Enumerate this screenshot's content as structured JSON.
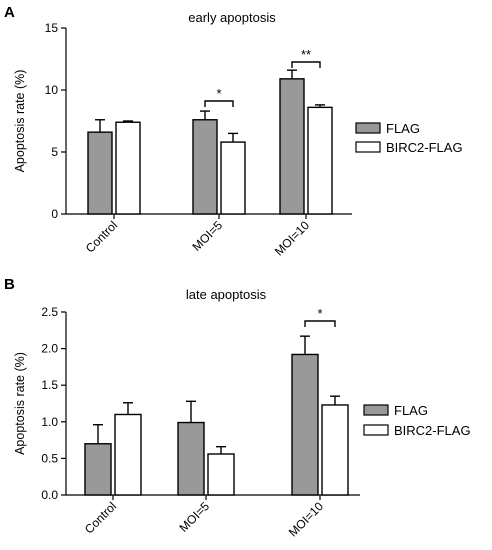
{
  "chart_data": [
    {
      "panel": "A",
      "type": "bar",
      "title": "early apoptosis",
      "xlabel": "",
      "ylabel": "Apoptosis rate (%)",
      "ylim": [
        0,
        15
      ],
      "yticks": [
        "0",
        "5",
        "10",
        "15"
      ],
      "categories": [
        "Control",
        "MOI=5",
        "MOI=10"
      ],
      "series": [
        {
          "name": "FLAG",
          "color": "#999999",
          "values": [
            6.6,
            7.6,
            10.9
          ],
          "errors": [
            1.0,
            0.7,
            0.7
          ]
        },
        {
          "name": "BIRC2-FLAG",
          "color": "#ffffff",
          "values": [
            7.4,
            5.8,
            8.6
          ],
          "errors": [
            0.1,
            0.7,
            0.2
          ]
        }
      ],
      "significance": [
        {
          "category_index": 1,
          "label": "*"
        },
        {
          "category_index": 2,
          "label": "**"
        }
      ],
      "legend": "right",
      "grid": false
    },
    {
      "panel": "B",
      "type": "bar",
      "title": "late apoptosis",
      "xlabel": "",
      "ylabel": "Apoptosis rate (%)",
      "ylim": [
        0,
        2.5
      ],
      "yticks": [
        "0.0",
        "0.5",
        "1.0",
        "1.5",
        "2.0",
        "2.5"
      ],
      "categories": [
        "Control",
        "MOI=5",
        "MOI=10"
      ],
      "series": [
        {
          "name": "FLAG",
          "color": "#999999",
          "values": [
            0.7,
            0.99,
            1.92
          ],
          "errors": [
            0.26,
            0.29,
            0.25
          ]
        },
        {
          "name": "BIRC2-FLAG",
          "color": "#ffffff",
          "values": [
            1.1,
            0.56,
            1.23
          ],
          "errors": [
            0.16,
            0.1,
            0.12
          ]
        }
      ],
      "significance": [
        {
          "category_index": 2,
          "label": "*"
        }
      ],
      "legend": "right",
      "grid": false
    }
  ]
}
